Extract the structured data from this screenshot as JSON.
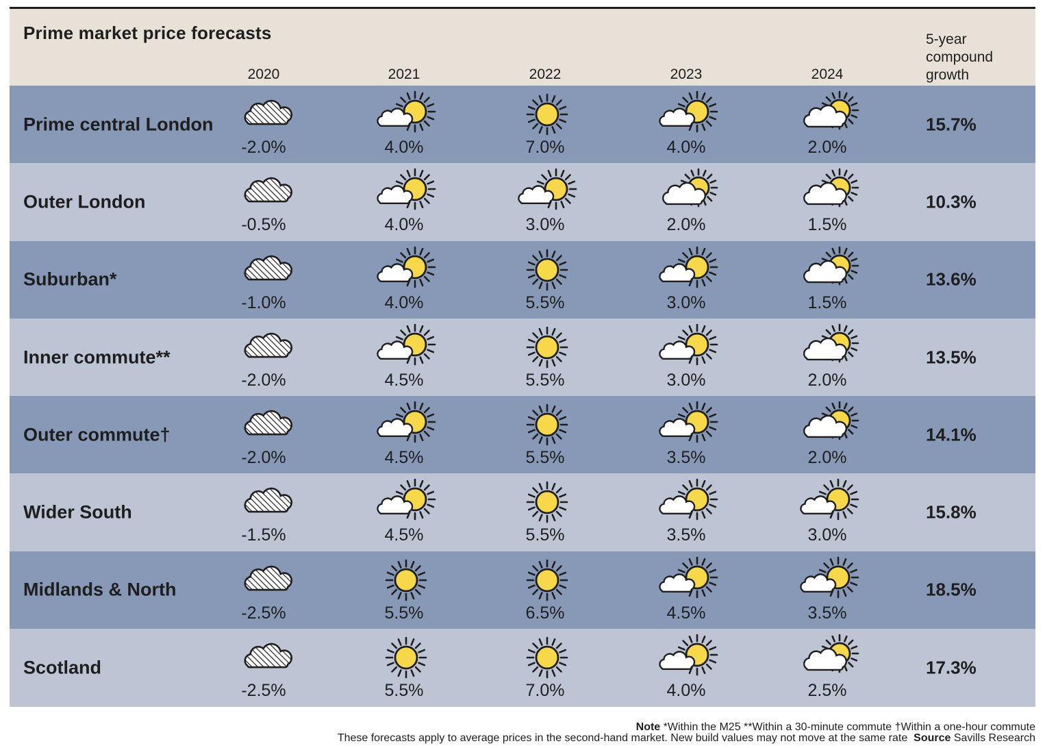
{
  "title": "Prime market price forecasts",
  "growth_header": "5-year compound growth",
  "footnote": {
    "note_label": "Note",
    "note_text": "*Within the M25 **Within a 30-minute commute †Within a one-hour commute",
    "line2_text": "These forecasts apply to average prices in the second-hand market. New build values may not move at the same rate",
    "source_label": "Source",
    "source_text": "Savills Research"
  },
  "colors": {
    "header_bg": "#e7e1d8",
    "row_dark": "#8799b6",
    "row_light": "#bdc4d4",
    "sun": "#f7d84b",
    "outline": "#1e1e1e"
  },
  "icon_legend": {
    "hatched_cloud": "negative growth",
    "cloud_partial_sun": "low growth",
    "cloud_sun": "moderate growth",
    "full_sun": "strong growth"
  },
  "chart_data": {
    "type": "table",
    "title": "Prime market price forecasts",
    "columns": [
      "2020",
      "2021",
      "2022",
      "2023",
      "2024"
    ],
    "growth_column": "5-year compound growth",
    "rows": [
      {
        "label": "Prime central London",
        "values": [
          "-2.0%",
          "4.0%",
          "7.0%",
          "4.0%",
          "2.0%"
        ],
        "icons": [
          "hatched_cloud",
          "cloud_sun",
          "full_sun",
          "cloud_sun",
          "cloud_partial_sun"
        ],
        "growth": "15.7%"
      },
      {
        "label": "Outer London",
        "values": [
          "-0.5%",
          "4.0%",
          "3.0%",
          "2.0%",
          "1.5%"
        ],
        "icons": [
          "hatched_cloud",
          "cloud_sun",
          "cloud_sun",
          "cloud_partial_sun",
          "cloud_partial_sun"
        ],
        "growth": "10.3%"
      },
      {
        "label": "Suburban*",
        "values": [
          "-1.0%",
          "4.0%",
          "5.5%",
          "3.0%",
          "1.5%"
        ],
        "icons": [
          "hatched_cloud",
          "cloud_sun",
          "full_sun",
          "cloud_sun",
          "cloud_partial_sun"
        ],
        "growth": "13.6%"
      },
      {
        "label": "Inner commute**",
        "values": [
          "-2.0%",
          "4.5%",
          "5.5%",
          "3.0%",
          "2.0%"
        ],
        "icons": [
          "hatched_cloud",
          "cloud_sun",
          "full_sun",
          "cloud_sun",
          "cloud_partial_sun"
        ],
        "growth": "13.5%"
      },
      {
        "label": "Outer commute†",
        "values": [
          "-2.0%",
          "4.5%",
          "5.5%",
          "3.5%",
          "2.0%"
        ],
        "icons": [
          "hatched_cloud",
          "cloud_sun",
          "full_sun",
          "cloud_sun",
          "cloud_partial_sun"
        ],
        "growth": "14.1%"
      },
      {
        "label": "Wider South",
        "values": [
          "-1.5%",
          "4.5%",
          "5.5%",
          "3.5%",
          "3.0%"
        ],
        "icons": [
          "hatched_cloud",
          "cloud_sun",
          "full_sun",
          "cloud_sun",
          "cloud_sun"
        ],
        "growth": "15.8%"
      },
      {
        "label": "Midlands & North",
        "values": [
          "-2.5%",
          "5.5%",
          "6.5%",
          "4.5%",
          "3.5%"
        ],
        "icons": [
          "hatched_cloud",
          "full_sun",
          "full_sun",
          "cloud_sun",
          "cloud_sun"
        ],
        "growth": "18.5%"
      },
      {
        "label": "Scotland",
        "values": [
          "-2.5%",
          "5.5%",
          "7.0%",
          "4.0%",
          "2.5%"
        ],
        "icons": [
          "hatched_cloud",
          "full_sun",
          "full_sun",
          "cloud_sun",
          "cloud_partial_sun"
        ],
        "growth": "17.3%"
      }
    ]
  }
}
